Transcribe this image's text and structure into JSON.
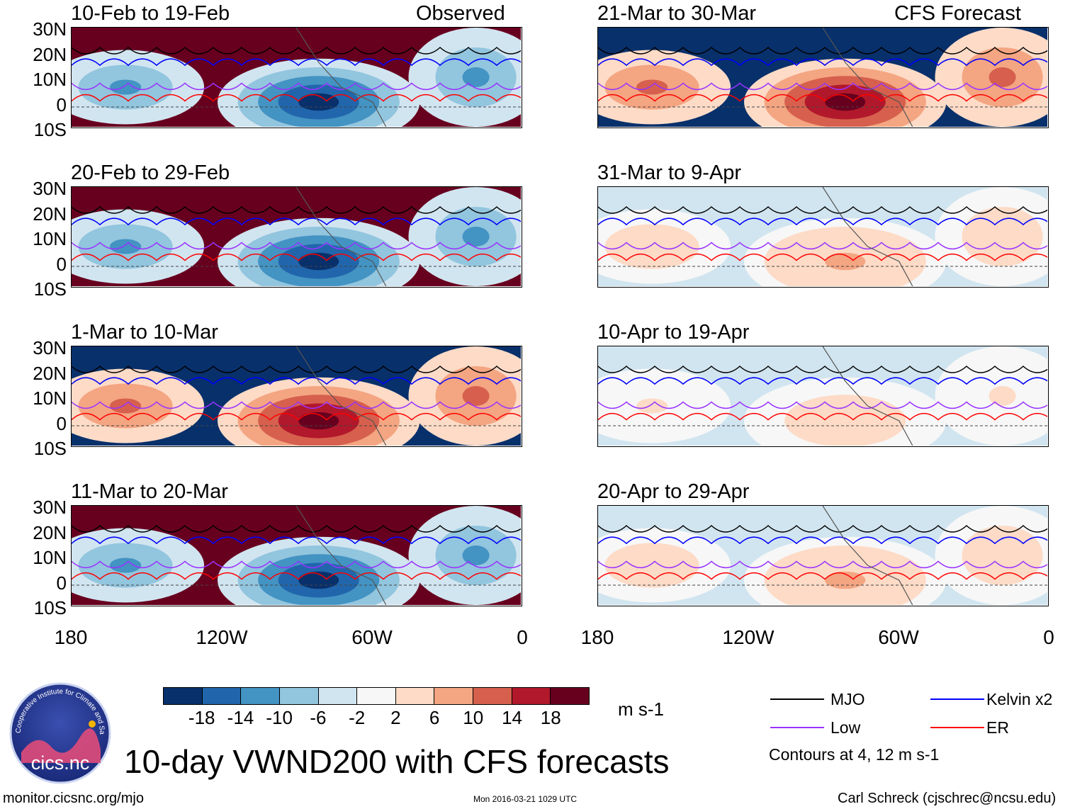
{
  "figure": {
    "title": "10-day VWND200 with CFS forecasts",
    "source_url": "monitor.cicsnc.org/mjo",
    "timestamp": "Mon 2016-03-21 1029 UTC",
    "author": "Carl Schreck (cjschrec@ncsu.edu)",
    "logo_text": "cics.nc",
    "logo_ring_text": "Cooperative Institute for Climate and Satellites",
    "observed_label": "Observed",
    "forecast_label": "CFS Forecast"
  },
  "chart_data": {
    "type": "heatmap",
    "variable": "VWND200",
    "lat_ticks": [
      "30N",
      "20N",
      "10N",
      "0",
      "10S"
    ],
    "lon_ticks": [
      "180",
      "120W",
      "60W",
      "0"
    ],
    "panels": [
      {
        "title": "10-Feb to 19-Feb",
        "group": "Observed",
        "anomaly_sign": -1,
        "max_abs": 20
      },
      {
        "title": "20-Feb to 29-Feb",
        "group": "Observed",
        "anomaly_sign": -1,
        "max_abs": 20
      },
      {
        "title": "1-Mar to 10-Mar",
        "group": "Observed",
        "anomaly_sign": 1,
        "max_abs": 20
      },
      {
        "title": "11-Mar to 20-Mar",
        "group": "Observed",
        "anomaly_sign": -1,
        "max_abs": 20
      },
      {
        "title": "21-Mar to 30-Mar",
        "group": "CFS Forecast",
        "anomaly_sign": 1,
        "max_abs": 20
      },
      {
        "title": "31-Mar to 9-Apr",
        "group": "CFS Forecast",
        "anomaly_sign": 1,
        "max_abs": 6
      },
      {
        "title": "10-Apr to 19-Apr",
        "group": "CFS Forecast",
        "anomaly_sign": 1,
        "max_abs": 4
      },
      {
        "title": "20-Apr to 29-Apr",
        "group": "CFS Forecast",
        "anomaly_sign": 1,
        "max_abs": 6
      }
    ],
    "colorbar": {
      "levels": [
        "-18",
        "-14",
        "-10",
        "-6",
        "-2",
        "2",
        "6",
        "10",
        "14",
        "18"
      ],
      "colors": [
        "#08306b",
        "#2166ac",
        "#4393c3",
        "#92c5de",
        "#d1e5f0",
        "#f7f7f7",
        "#fddbc7",
        "#f4a582",
        "#d6604d",
        "#b2182b",
        "#67001f"
      ],
      "units": "m s-1"
    },
    "legend": [
      {
        "name": "MJO",
        "color": "#000000"
      },
      {
        "name": "Kelvin x2",
        "color": "#0000ff"
      },
      {
        "name": "Low",
        "color": "#9933ff"
      },
      {
        "name": "ER",
        "color": "#ff0000"
      }
    ],
    "contour_note": "Contours at 4, 12 m s-1"
  }
}
